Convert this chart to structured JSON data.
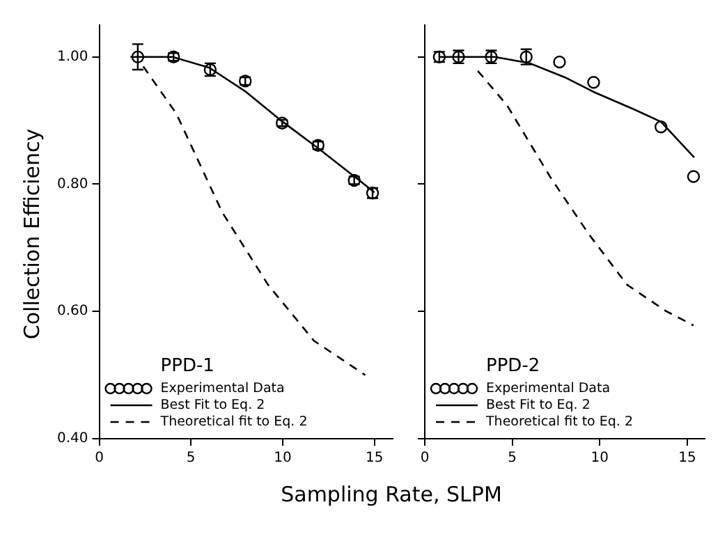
{
  "chart_data": [
    {
      "type": "line",
      "xlabel": "Sampling Rate, SLPM",
      "ylabel": "Collection Efficiency",
      "legend_title": "PPD-1",
      "legend": "bottom left",
      "grid": false,
      "xlim": [
        0,
        16
      ],
      "xticks": [
        0,
        5,
        10,
        15
      ],
      "ylim": [
        0.4,
        1.05
      ],
      "yticks": [
        {
          "value": 0.4,
          "label": "0.40"
        },
        {
          "value": 0.6,
          "label": "0.60"
        },
        {
          "value": 0.8,
          "label": "0.80"
        },
        {
          "value": 1.0,
          "label": "1.00"
        }
      ],
      "series": [
        {
          "name": "Experimental Data",
          "type": "scatter",
          "color": "#000000",
          "marker": "circle",
          "x": [
            2.1,
            4.05,
            6.05,
            7.96,
            9.97,
            11.93,
            13.9,
            14.9
          ],
          "values": [
            1.0,
            1.0,
            0.98,
            0.962,
            0.896,
            0.861,
            0.806,
            0.786
          ],
          "errors": [
            0.02,
            0.006,
            0.01,
            0.006,
            0.005,
            0.006,
            0.006,
            0.008
          ]
        },
        {
          "name": "Best Fit to Eq. 2",
          "type": "line",
          "color": "#000000",
          "marker": "none",
          "line_style": "solid",
          "x": [
            1.7,
            4,
            6,
            8,
            10,
            12,
            14,
            15
          ],
          "values": [
            1.0,
            1.0,
            0.983,
            0.945,
            0.898,
            0.855,
            0.81,
            0.787
          ]
        },
        {
          "name": "Theoretical fit to Eq. 2",
          "type": "line",
          "color": "#000000",
          "marker": "none",
          "line_style": "dashed",
          "x": [
            2.4,
            4.2,
            6.7,
            9.2,
            11.7,
            14.5
          ],
          "values": [
            0.985,
            0.911,
            0.756,
            0.642,
            0.554,
            0.5
          ]
        }
      ]
    },
    {
      "type": "line",
      "legend_title": "PPD-2",
      "legend": "bottom left",
      "grid": false,
      "tick_labels": "x",
      "xlim": [
        0,
        16
      ],
      "xticks": [
        0,
        5,
        10,
        15
      ],
      "ylim": [
        0.4,
        1.05
      ],
      "yticks": [
        0.4,
        0.6,
        0.8,
        1.0
      ],
      "series": [
        {
          "name": "Experimental Data",
          "type": "scatter",
          "color": "#000000",
          "marker": "circle",
          "x": [
            0.83,
            1.93,
            3.8,
            5.8,
            7.7,
            9.65,
            13.5,
            15.36
          ],
          "values": [
            1.0,
            1.0,
            1.0,
            1.0,
            0.992,
            0.96,
            0.89,
            0.812
          ],
          "errors": [
            0.008,
            0.01,
            0.01,
            0.012,
            null,
            null,
            null,
            null
          ]
        },
        {
          "name": "Best Fit to Eq. 2",
          "type": "line",
          "color": "#000000",
          "marker": "none",
          "line_style": "solid",
          "x": [
            0.8,
            4,
            6,
            8,
            9.65,
            12,
            13.5,
            15.4
          ],
          "values": [
            1.0,
            1.0,
            0.99,
            0.968,
            0.945,
            0.917,
            0.898,
            0.842
          ]
        },
        {
          "name": "Theoretical fit to Eq. 2",
          "type": "line",
          "color": "#000000",
          "marker": "none",
          "line_style": "dashed",
          "x": [
            3.03,
            4.7,
            7.2,
            9.36,
            11.56,
            13.76,
            15.36
          ],
          "values": [
            0.978,
            0.924,
            0.81,
            0.722,
            0.642,
            0.601,
            0.578
          ]
        }
      ]
    }
  ]
}
